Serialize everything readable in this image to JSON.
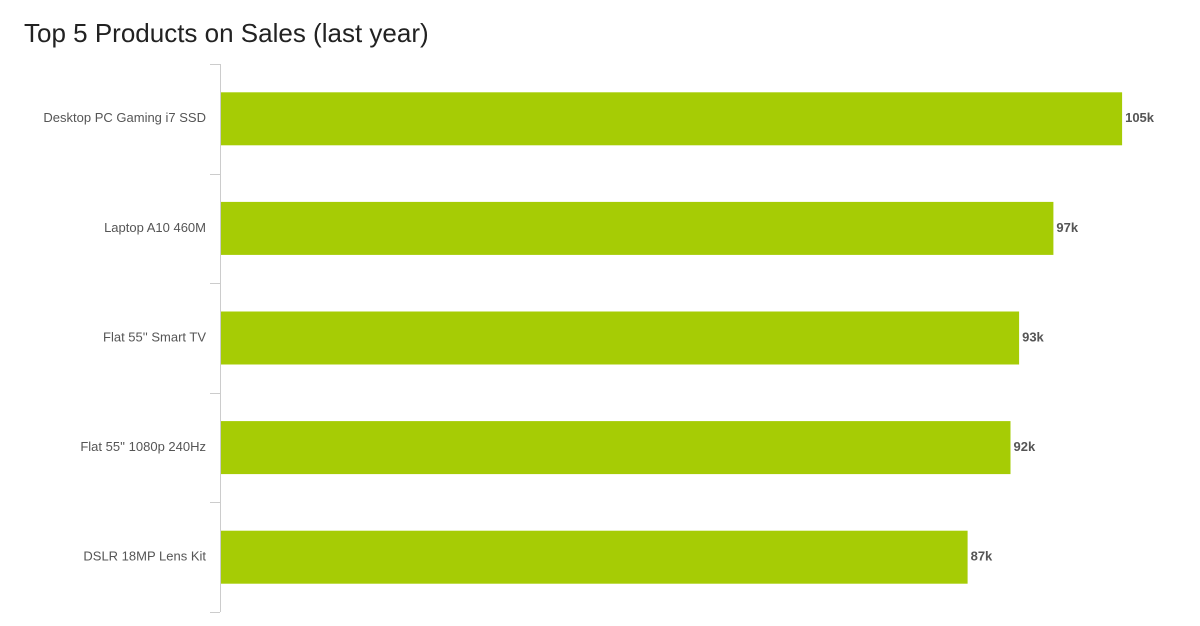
{
  "chart_data": {
    "type": "bar",
    "orientation": "horizontal",
    "title": "Top 5 Products on Sales (last year)",
    "categories": [
      "Desktop PC Gaming i7 SSD",
      "Laptop A10 460M",
      "Flat 55'' Smart TV",
      "Flat 55'' 1080p 240Hz",
      "DSLR 18MP Lens Kit"
    ],
    "values": [
      105,
      97,
      93,
      92,
      87
    ],
    "data_labels": [
      "105k",
      "97k",
      "93k",
      "92k",
      "87k"
    ],
    "xlabel": "",
    "ylabel": "",
    "xlim": [
      0,
      110
    ],
    "grid": false,
    "legend": "none",
    "bar_color": "#a6cc05",
    "axis_color": "#cccccc"
  }
}
